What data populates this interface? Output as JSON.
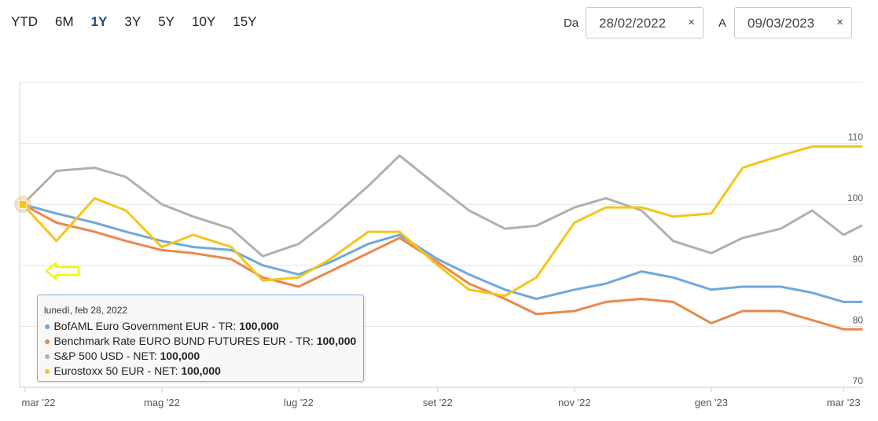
{
  "ranges": [
    {
      "label": "YTD",
      "active": false
    },
    {
      "label": "6M",
      "active": false
    },
    {
      "label": "1Y",
      "active": true
    },
    {
      "label": "3Y",
      "active": false
    },
    {
      "label": "5Y",
      "active": false
    },
    {
      "label": "10Y",
      "active": false
    },
    {
      "label": "15Y",
      "active": false
    }
  ],
  "date_from": {
    "label": "Da",
    "value": "28/02/2022",
    "clear": "×"
  },
  "date_to": {
    "label": "A",
    "value": "09/03/2023",
    "clear": "×"
  },
  "tooltip": {
    "header": "lunedì, feb 28, 2022",
    "rows": [
      {
        "name": "BofAML Euro Government EUR - TR",
        "value": "100,000",
        "color": "#6fa8dc"
      },
      {
        "name": "Benchmark Rate EURO BUND FUTURES EUR - TR",
        "value": "100,000",
        "color": "#e8894a"
      },
      {
        "name": "S&P 500 USD - NET",
        "value": "100,000",
        "color": "#b0b0b0"
      },
      {
        "name": "Eurostoxx 50 EUR - NET",
        "value": "100,000",
        "color": "#f5c518"
      }
    ]
  },
  "arrow_color": "#f5f500",
  "chart_data": {
    "type": "line",
    "x": [
      "2022-02-28",
      "2022-03-15",
      "2022-04-01",
      "2022-04-15",
      "2022-05-01",
      "2022-05-15",
      "2022-06-01",
      "2022-06-15",
      "2022-07-01",
      "2022-07-15",
      "2022-08-01",
      "2022-08-15",
      "2022-09-01",
      "2022-09-15",
      "2022-10-01",
      "2022-10-15",
      "2022-11-01",
      "2022-11-15",
      "2022-12-01",
      "2022-12-15",
      "2023-01-01",
      "2023-01-15",
      "2023-02-01",
      "2023-02-15",
      "2023-03-01",
      "2023-03-09"
    ],
    "x_ticks": [
      {
        "date": "2022-03-01",
        "label": "mar '22"
      },
      {
        "date": "2022-05-01",
        "label": "mag '22"
      },
      {
        "date": "2022-07-01",
        "label": "lug '22"
      },
      {
        "date": "2022-09-01",
        "label": "set '22"
      },
      {
        "date": "2022-11-01",
        "label": "nov '22"
      },
      {
        "date": "2023-01-01",
        "label": "gen '23"
      },
      {
        "date": "2023-03-01",
        "label": "mar '23"
      }
    ],
    "y_ticks": [
      70,
      80,
      90,
      100,
      110
    ],
    "ylim": [
      70,
      120
    ],
    "grid": true,
    "series": [
      {
        "name": "BofAML Euro Government EUR - TR",
        "color": "#6fa8dc",
        "values": [
          100,
          98.5,
          97,
          95.5,
          94,
          93,
          92.5,
          90,
          88.5,
          90.5,
          93.5,
          95,
          91,
          88.5,
          86,
          84.5,
          86,
          87,
          89,
          88,
          86,
          86.5,
          86.5,
          85.5,
          84,
          84
        ]
      },
      {
        "name": "Benchmark Rate EURO BUND FUTURES EUR - TR",
        "color": "#e8894a",
        "values": [
          100,
          97,
          95.5,
          94,
          92.5,
          92,
          91,
          88,
          86.5,
          89,
          92,
          94.5,
          90.5,
          87,
          84.5,
          82,
          82.5,
          84,
          84.5,
          84,
          80.5,
          82.5,
          82.5,
          81,
          79.5,
          79.5
        ]
      },
      {
        "name": "S&P 500 USD - NET",
        "color": "#b0b0b0",
        "values": [
          100,
          105.5,
          106,
          104.5,
          100,
          98,
          96,
          91.5,
          93.5,
          97.5,
          103,
          108,
          103,
          99,
          96,
          96.5,
          99.5,
          101,
          99,
          94,
          92,
          94.5,
          96,
          99,
          95,
          96.5
        ]
      },
      {
        "name": "Eurostoxx 50 EUR - NET",
        "color": "#f5c518",
        "values": [
          100,
          94,
          101,
          99,
          93,
          95,
          93,
          87.5,
          88,
          91,
          95.5,
          95.5,
          90,
          86,
          85,
          88,
          97,
          99.5,
          99.5,
          98,
          98.5,
          106,
          108,
          109.5,
          109.5,
          109.5
        ]
      }
    ]
  }
}
